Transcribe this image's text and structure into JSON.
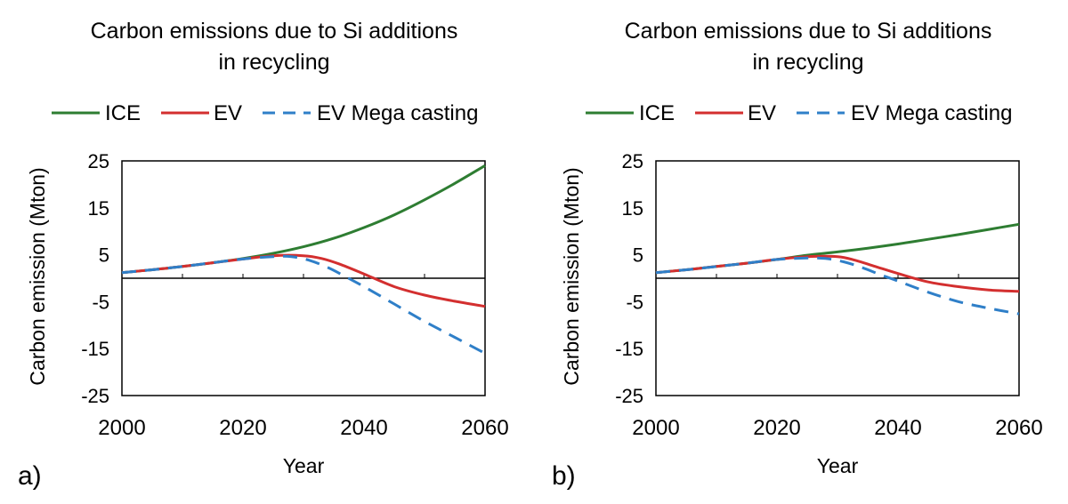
{
  "chart_data": [
    {
      "type": "line",
      "panel_label": "a)",
      "title_lines": [
        "Carbon emissions due to Si additions",
        "in recycling"
      ],
      "xlabel": "Year",
      "ylabel": "Carbon emission (Mton)",
      "xlim": [
        2000,
        2060
      ],
      "ylim": [
        -25,
        25
      ],
      "xticks": [
        2000,
        2020,
        2040,
        2060
      ],
      "yticks": [
        25,
        15,
        5,
        -5,
        -15,
        -25
      ],
      "legend_position": "top",
      "series": [
        {
          "name": "ICE",
          "color": "#2e7d32",
          "dash": "solid",
          "x": [
            2000,
            2005,
            2010,
            2015,
            2020,
            2025,
            2030,
            2035,
            2040,
            2045,
            2050,
            2055,
            2060
          ],
          "y": [
            1.2,
            1.8,
            2.5,
            3.3,
            4.2,
            5.3,
            6.7,
            8.5,
            10.8,
            13.5,
            16.7,
            20.2,
            24.0
          ]
        },
        {
          "name": "EV",
          "color": "#d32f2f",
          "dash": "solid",
          "x": [
            2000,
            2005,
            2010,
            2015,
            2020,
            2025,
            2030,
            2033,
            2036,
            2040,
            2045,
            2050,
            2055,
            2060
          ],
          "y": [
            1.2,
            1.8,
            2.5,
            3.3,
            4.1,
            4.8,
            4.8,
            4.2,
            3.0,
            0.9,
            -1.8,
            -3.6,
            -4.9,
            -6.0
          ]
        },
        {
          "name": "EV Mega casting",
          "color": "#2f7fc8",
          "dash": "dashed",
          "x": [
            2000,
            2005,
            2010,
            2015,
            2020,
            2025,
            2028,
            2031,
            2034,
            2037,
            2040,
            2045,
            2050,
            2055,
            2060
          ],
          "y": [
            1.2,
            1.8,
            2.5,
            3.3,
            4.1,
            4.6,
            4.6,
            3.8,
            2.3,
            0.3,
            -1.8,
            -5.5,
            -9.2,
            -12.6,
            -16.0
          ]
        }
      ]
    },
    {
      "type": "line",
      "panel_label": "b)",
      "title_lines": [
        "Carbon emissions due to Si additions",
        "in recycling"
      ],
      "xlabel": "Year",
      "ylabel": "Carbon emission (Mton)",
      "xlim": [
        2000,
        2060
      ],
      "ylim": [
        -25,
        25
      ],
      "xticks": [
        2000,
        2020,
        2040,
        2060
      ],
      "yticks": [
        25,
        15,
        5,
        -5,
        -15,
        -25
      ],
      "legend_position": "top",
      "series": [
        {
          "name": "ICE",
          "color": "#2e7d32",
          "dash": "solid",
          "x": [
            2000,
            2005,
            2010,
            2015,
            2020,
            2025,
            2030,
            2035,
            2040,
            2045,
            2050,
            2055,
            2060
          ],
          "y": [
            1.2,
            1.8,
            2.5,
            3.2,
            4.0,
            4.9,
            5.6,
            6.4,
            7.3,
            8.3,
            9.3,
            10.4,
            11.5
          ]
        },
        {
          "name": "EV",
          "color": "#d32f2f",
          "dash": "solid",
          "x": [
            2000,
            2005,
            2010,
            2015,
            2020,
            2025,
            2030,
            2033,
            2036,
            2040,
            2045,
            2050,
            2055,
            2060
          ],
          "y": [
            1.2,
            1.8,
            2.5,
            3.2,
            4.0,
            4.6,
            4.6,
            3.8,
            2.6,
            1.0,
            -0.8,
            -1.8,
            -2.5,
            -2.8
          ]
        },
        {
          "name": "EV Mega casting",
          "color": "#2f7fc8",
          "dash": "dashed",
          "x": [
            2000,
            2005,
            2010,
            2015,
            2020,
            2025,
            2028,
            2031,
            2034,
            2037,
            2040,
            2045,
            2050,
            2055,
            2060
          ],
          "y": [
            1.2,
            1.8,
            2.5,
            3.2,
            4.0,
            4.3,
            4.2,
            3.5,
            2.3,
            0.8,
            -0.6,
            -3.0,
            -5.0,
            -6.4,
            -7.6
          ]
        }
      ]
    }
  ]
}
